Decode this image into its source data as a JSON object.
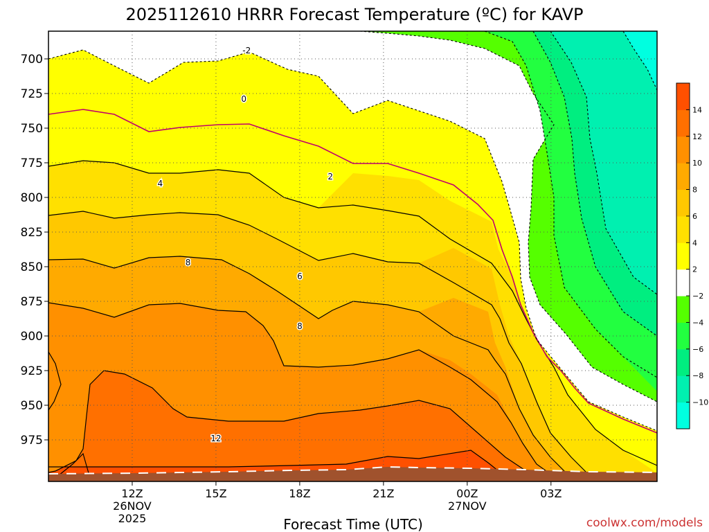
{
  "chart_data": {
    "type": "heatmap",
    "title": "2025112610 HRRR Forecast Temperature (ºC) for KAVP",
    "xlabel": "Forecast Time (UTC)",
    "ylabel": "",
    "y_axis": {
      "units": "hPa",
      "inverted": true,
      "ylim": [
        1005,
        680
      ],
      "ticks": [
        700,
        725,
        750,
        775,
        800,
        825,
        850,
        875,
        900,
        925,
        950,
        975
      ]
    },
    "x_axis": {
      "xlim": [
        9,
        30.8
      ],
      "ticks": [
        {
          "hour": 12,
          "label": "12Z",
          "date": "26NOV",
          "year": "2025"
        },
        {
          "hour": 15,
          "label": "15Z"
        },
        {
          "hour": 18,
          "label": "18Z"
        },
        {
          "hour": 21,
          "label": "21Z"
        },
        {
          "hour": 24,
          "label": "00Z",
          "date": "27NOV"
        },
        {
          "hour": 27,
          "label": "03Z"
        }
      ]
    },
    "grid": true,
    "colorbar": {
      "position": "right",
      "levels": [
        -12,
        -10,
        -8,
        -6,
        -4,
        -2,
        2,
        4,
        6,
        8,
        10,
        12,
        14,
        16
      ],
      "tick_labels": [
        "14",
        "12",
        "10",
        "8",
        "6",
        "4",
        "2",
        "−2",
        "−4",
        "−6",
        "−8",
        "−10"
      ],
      "colors": [
        "#00ffe0",
        "#00f0b0",
        "#00ee80",
        "#22ff40",
        "#55ff00",
        "#ffffff",
        "#ffff00",
        "#ffe000",
        "#ffc800",
        "#ffaa00",
        "#ff9000",
        "#ff7000",
        "#ff5000"
      ]
    },
    "contour_labels": [
      {
        "text": "-2",
        "hour": 16.1,
        "p": 694
      },
      {
        "text": "0",
        "hour": 16.0,
        "p": 729
      },
      {
        "text": "2",
        "hour": 19.1,
        "p": 785
      },
      {
        "text": "4",
        "hour": 13.0,
        "p": 790
      },
      {
        "text": "6",
        "hour": 18.0,
        "p": 857
      },
      {
        "text": "8",
        "hour": 14.0,
        "p": 847
      },
      {
        "text": "8",
        "hour": 18.0,
        "p": 893
      },
      {
        "text": "12",
        "hour": 15.0,
        "p": 974
      }
    ]
  },
  "colors": {
    "zero_line": "#c0006a",
    "ground": "#a0522d",
    "credit": "#cc3333"
  },
  "credit": "coolwx.com/models"
}
